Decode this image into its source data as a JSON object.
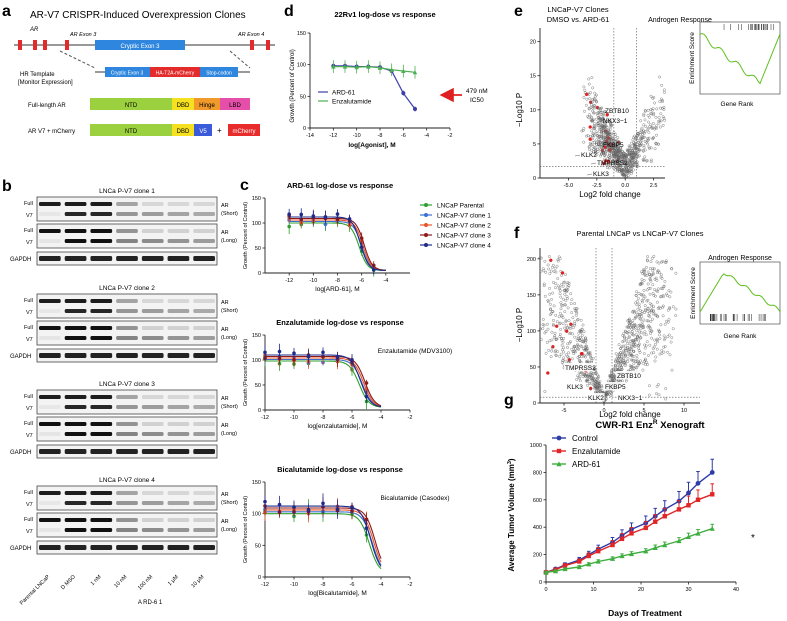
{
  "panel_letters": [
    "a",
    "b",
    "c",
    "d",
    "e",
    "f",
    "g"
  ],
  "panel_a": {
    "title": "AR-V7 CRISPR-Induced Overexpression Clones",
    "ar_label": "AR",
    "exon3_label": "AR Exon 3",
    "exon4_label": "AR Exon 4",
    "cryptic_exon": "Cryptic Exon 3",
    "hr_template": "HR Template",
    "monitor": "[Monitor Expression]",
    "hr_cryptic": "Cryptic Exon 3",
    "hr_t2a": "HA-T2A-mCherry",
    "hr_stop": "Stop-codon",
    "full_length_label": "Full-length AR",
    "arv7_label": "AR V7 + mCherry",
    "domains_full": [
      "NTD",
      "DBD",
      "Hinge",
      "LBD"
    ],
    "domains_v7": [
      "NTD",
      "DBD",
      "V5"
    ],
    "plus": "+",
    "mcherry": "mCherry",
    "colors": {
      "ntd": "#9bd13e",
      "dbd": "#f5e11f",
      "hinge": "#f09a2b",
      "lbd": "#e64fa9",
      "v5": "#3b5bdb",
      "mcherry": "#e82b2b",
      "exon": "#e32b2b",
      "cryptic": "#2e86de"
    }
  },
  "panel_b": {
    "clones": [
      {
        "title": "LNCa P-V7 clone 1"
      },
      {
        "title": "LNCa P-V7 clone 2"
      },
      {
        "title": "LNCa P-V7 clone 3"
      },
      {
        "title": "LNCa P-V7 clone 4"
      }
    ],
    "row_full": "Full",
    "row_v7": "V7",
    "ar_short": "AR\n(Short)",
    "ar_long": "AR\n(Long)",
    "short_l1": "AR",
    "short_l2": "(Short)",
    "long_l1": "AR",
    "long_l2": "(Long)",
    "gapdh": "GAPDH",
    "lanes": [
      "Parental LNCaP",
      "D MSO",
      "1 nM",
      "10 nM",
      "100 nM",
      "1 μM",
      "10 μM"
    ],
    "treatment": "A RD-6 1"
  },
  "panel_c": [
    {
      "title": "ARD-61 log-dose vs response",
      "xlabel": "log[ARD-61], M",
      "ylabel": "Growth (Percent of Control)",
      "xticks": [
        "-12",
        "-10",
        "-8",
        "-6",
        "-4"
      ],
      "yticks": [
        "0",
        "50",
        "100",
        "150"
      ],
      "legend": [
        "LNCaP Parental",
        "LNCaP-V7 clone 1",
        "LNCaP-V7 clone 2",
        "LNCaP-V7 clone 3",
        "LNCaP-V7 clone 4"
      ],
      "drug_note": ""
    },
    {
      "title": "Enzalutamide log-dose vs response",
      "xlabel": "log[enzalutamide], M",
      "ylabel": "Growth (Percent of Control)",
      "xticks": [
        "-12",
        "-10",
        "-8",
        "-6",
        "-4",
        "-2"
      ],
      "yticks": [
        "0",
        "50",
        "100",
        "150"
      ],
      "drug_note": "Enzalutamide (MDV3100)"
    },
    {
      "title": "Bicalutamide log-dose vs response",
      "xlabel": "log[Bicalutamide], M",
      "ylabel": "Growth (Percent of Control)",
      "xticks": [
        "-12",
        "-10",
        "-8",
        "-6",
        "-4",
        "-2"
      ],
      "yticks": [
        "0",
        "50",
        "100",
        "150"
      ],
      "drug_note": "Bicalutamide (Casodex)"
    }
  ],
  "series_colors": [
    "#2ca02c",
    "#3b6fd1",
    "#e8542a",
    "#8b1a1a",
    "#1f2b8a"
  ],
  "chart_data": [
    {
      "type": "line",
      "id": "d",
      "title": "22Rv1 log-dose vs response",
      "xlabel": "log[Agonist], M",
      "ylabel": "Growth (Percent of Control)",
      "xlim": [
        -14,
        -2
      ],
      "ylim": [
        0,
        150
      ],
      "xticks": [
        "-14",
        "-12",
        "-10",
        "-8",
        "-6",
        "-4",
        "-2"
      ],
      "yticks": [
        "0",
        "50",
        "100",
        "150"
      ],
      "series": [
        {
          "name": "ARD-61",
          "color": "#3b3fa8",
          "x": [
            -12,
            -11,
            -10,
            -9,
            -8,
            -7,
            -6,
            -5
          ],
          "values": [
            98,
            98,
            97,
            97,
            96,
            90,
            55,
            30
          ]
        },
        {
          "name": "Enzalutamide",
          "color": "#4caf50",
          "x": [
            -12,
            -11,
            -10,
            -9,
            -8,
            -7,
            -6,
            -5
          ],
          "values": [
            97,
            97,
            96,
            97,
            95,
            92,
            90,
            88
          ]
        }
      ],
      "annotation": "479 nM IC50",
      "ann_l1": "479 nM",
      "ann_l2": "IC50"
    },
    {
      "type": "line",
      "id": "g",
      "title": "CWR-R1 Enz R Xenograft",
      "title_main": "CWR-R1 Enz",
      "title_sup": "R",
      "title_tail": " Xenograft",
      "xlabel": "Days of Treatment",
      "ylabel": "Average Tumor Volume (mm3)",
      "ylabel_main": "Average Tumor Volume (mm",
      "ylabel_sup": "3",
      "ylabel_tail": ")",
      "xlim": [
        0,
        40
      ],
      "ylim": [
        0,
        1000
      ],
      "xticks": [
        "0",
        "10",
        "20",
        "30",
        "40"
      ],
      "yticks": [
        "0",
        "200",
        "400",
        "600",
        "800",
        "1000"
      ],
      "series": [
        {
          "name": "Control",
          "color": "#2e3ca8",
          "x": [
            0,
            2,
            4,
            7,
            9,
            11,
            14,
            16,
            18,
            21,
            23,
            25,
            28,
            30,
            32,
            35
          ],
          "values": [
            70,
            95,
            125,
            160,
            200,
            240,
            290,
            340,
            385,
            430,
            480,
            530,
            590,
            650,
            720,
            800
          ]
        },
        {
          "name": "Enzalutamide",
          "color": "#e02626",
          "x": [
            0,
            2,
            4,
            7,
            9,
            11,
            14,
            16,
            18,
            21,
            23,
            25,
            28,
            30,
            32,
            35
          ],
          "values": [
            70,
            90,
            120,
            150,
            190,
            225,
            270,
            315,
            355,
            395,
            440,
            480,
            530,
            560,
            600,
            640
          ]
        },
        {
          "name": "ARD-61",
          "color": "#3fae3f",
          "x": [
            0,
            2,
            4,
            7,
            9,
            11,
            14,
            16,
            18,
            21,
            23,
            25,
            28,
            30,
            32,
            35
          ],
          "values": [
            70,
            80,
            95,
            110,
            130,
            150,
            170,
            190,
            205,
            225,
            250,
            270,
            300,
            330,
            355,
            390
          ]
        }
      ],
      "annotation": "*"
    }
  ],
  "panel_e": {
    "title_l1": "LNCaP-V7 Clones",
    "title_l2": "DMSO vs. ARD-61",
    "xlabel": "Log2 fold change",
    "ylabel": "−Log10 P",
    "xticks": [
      "-5.0",
      "-2.5",
      "0.0",
      "2.5"
    ],
    "yticks": [
      "0",
      "5",
      "10",
      "15",
      "20"
    ],
    "genes": [
      "ZBTB10",
      "NKX3−1",
      "FKBP5",
      "KLK2",
      "TMPRSS2",
      "KLK3"
    ],
    "gsea_title": "Androgen Response",
    "gsea_y": "Enrichment Score",
    "gsea_x": "Gene Rank"
  },
  "panel_f": {
    "title": "Parental LNCaP vs LNCaP-V7 Clones",
    "xlabel": "Log2 fold change",
    "ylabel": "−Log10 P",
    "xticks": [
      "-5",
      "0",
      "5",
      "10"
    ],
    "yticks": [
      "0",
      "50",
      "100",
      "150",
      "200"
    ],
    "genes": [
      "TMPRSS2",
      "ZBTB10",
      "KLK3",
      "FKBP5",
      "KLK2",
      "NKX3−1"
    ],
    "gsea_title": "Androgen Response",
    "gsea_y": "Enrichment Score",
    "gsea_x": "Gene Rank"
  }
}
